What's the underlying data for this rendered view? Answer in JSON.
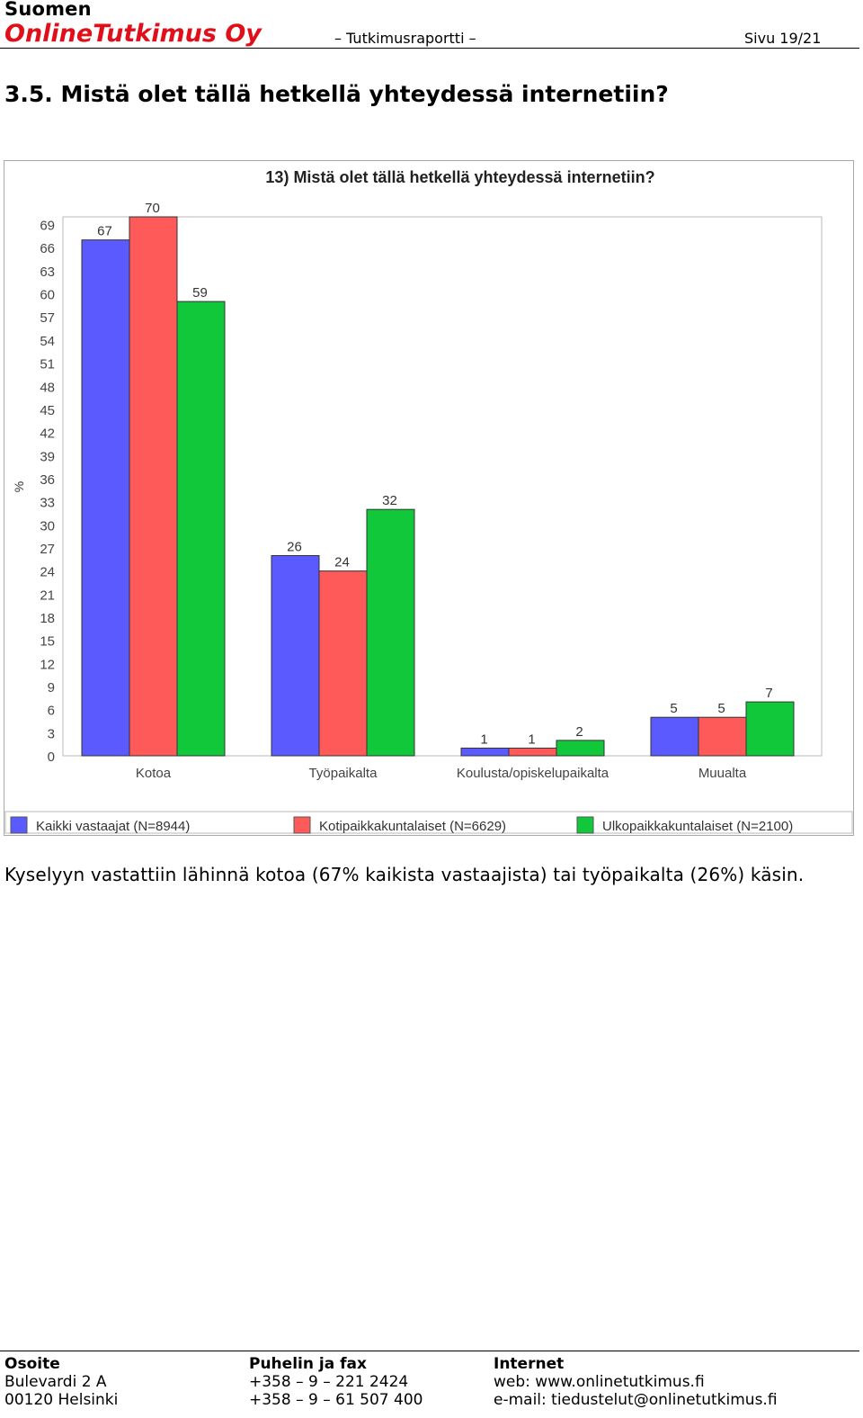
{
  "header": {
    "brand_top": "Suomen",
    "brand_main": "OnlineTutkimus Oy",
    "doc_type": "– Tutkimusraportti –",
    "page": "Sivu 19/21",
    "brand_color": "#e0101a"
  },
  "section": {
    "title": "3.5. Mistä olet tällä hetkellä yhteydessä internetiin?"
  },
  "chart_data": {
    "type": "bar",
    "title": "13) Mistä olet tällä hetkellä yhteydessä internetiin?",
    "ylabel": "%",
    "xlabel": "",
    "ylim": [
      0,
      70
    ],
    "yticks": [
      0,
      3,
      6,
      9,
      12,
      15,
      18,
      21,
      24,
      27,
      30,
      33,
      36,
      39,
      42,
      45,
      48,
      51,
      54,
      57,
      60,
      63,
      66,
      69
    ],
    "categories": [
      "Kotoa",
      "Työpaikalta",
      "Koulusta/opiskelupaikalta",
      "Muualta"
    ],
    "series": [
      {
        "name": "Kaikki vastaajat (N=8944)",
        "color": "#5a5aff",
        "values": [
          67,
          26,
          1,
          5
        ]
      },
      {
        "name": "Kotipaikkakuntalaiset (N=6629)",
        "color": "#ff5a5a",
        "values": [
          70,
          24,
          1,
          5
        ]
      },
      {
        "name": "Ulkopaikkakuntalaiset (N=2100)",
        "color": "#10c83a",
        "values": [
          59,
          32,
          2,
          7
        ]
      }
    ],
    "grid": false,
    "legend": "bottom"
  },
  "body": {
    "text": "Kyselyyn vastattiin lähinnä kotoa (67% kaikista vastaajista) tai työpaikalta (26%) käsin."
  },
  "footer": {
    "address": {
      "heading": "Osoite",
      "line1": "Bulevardi 2 A",
      "line2": "00120 Helsinki"
    },
    "phone": {
      "heading": "Puhelin ja fax",
      "line1": "+358 – 9 – 221 2424",
      "line2": "+358 – 9 – 61 507 400"
    },
    "internet": {
      "heading": "Internet",
      "line1": "web: www.onlinetutkimus.fi",
      "line2": "e-mail: tiedustelut@onlinetutkimus.fi"
    }
  }
}
